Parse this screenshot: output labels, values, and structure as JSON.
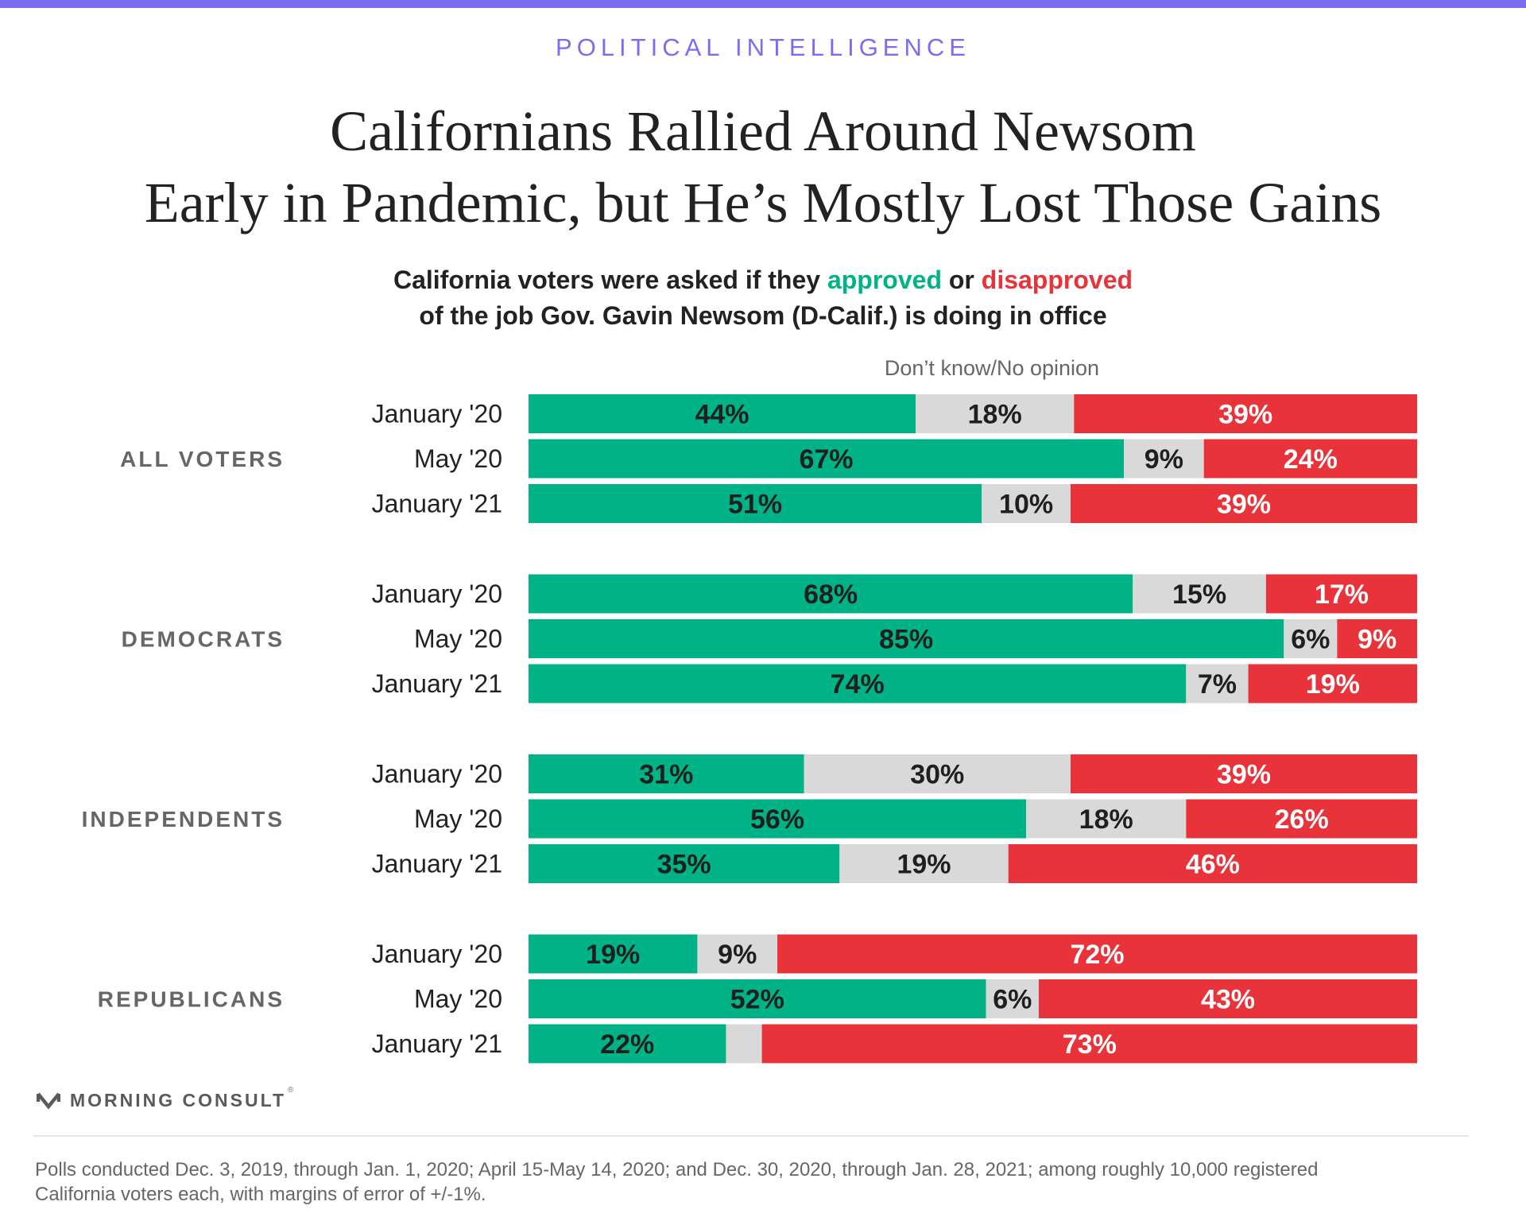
{
  "header": {
    "kicker": "POLITICAL INTELLIGENCE",
    "title_line1": "Californians Rallied Around Newsom",
    "title_line2": "Early in Pandemic, but He’s Mostly Lost Those Gains",
    "subtitle_part1": "California voters were asked if they ",
    "subtitle_approved": "approved",
    "subtitle_or": " or ",
    "subtitle_disapproved": "disapproved",
    "subtitle_line2": "of the job Gov. Gavin Newsom (D-Calif.) is doing in office"
  },
  "colors": {
    "accent": "#7B6CF2",
    "approve": "#00B386",
    "neutral": "#D9D9D9",
    "disapprove": "#E8333A",
    "group_label": "#666666"
  },
  "chart_data": {
    "type": "bar",
    "orientation": "horizontal",
    "stacked": true,
    "category_label": "Don’t know/No opinion",
    "series_order": [
      "approve",
      "no_opinion",
      "disapprove"
    ],
    "groups": [
      {
        "name": "ALL VOTERS",
        "rows": [
          {
            "period": "January '20",
            "approve": 44,
            "no_opinion": 18,
            "disapprove": 39,
            "approve_label": "44%",
            "no_opinion_label": "18%",
            "disapprove_label": "39%"
          },
          {
            "period": "May '20",
            "approve": 67,
            "no_opinion": 9,
            "disapprove": 24,
            "approve_label": "67%",
            "no_opinion_label": "9%",
            "disapprove_label": "24%"
          },
          {
            "period": "January '21",
            "approve": 51,
            "no_opinion": 10,
            "disapprove": 39,
            "approve_label": "51%",
            "no_opinion_label": "10%",
            "disapprove_label": "39%"
          }
        ]
      },
      {
        "name": "DEMOCRATS",
        "rows": [
          {
            "period": "January '20",
            "approve": 68,
            "no_opinion": 15,
            "disapprove": 17,
            "approve_label": "68%",
            "no_opinion_label": "15%",
            "disapprove_label": "17%"
          },
          {
            "period": "May '20",
            "approve": 85,
            "no_opinion": 6,
            "disapprove": 9,
            "approve_label": "85%",
            "no_opinion_label": "6%",
            "disapprove_label": "9%"
          },
          {
            "period": "January '21",
            "approve": 74,
            "no_opinion": 7,
            "disapprove": 19,
            "approve_label": "74%",
            "no_opinion_label": "7%",
            "disapprove_label": "19%"
          }
        ]
      },
      {
        "name": "INDEPENDENTS",
        "rows": [
          {
            "period": "January '20",
            "approve": 31,
            "no_opinion": 30,
            "disapprove": 39,
            "approve_label": "31%",
            "no_opinion_label": "30%",
            "disapprove_label": "39%"
          },
          {
            "period": "May '20",
            "approve": 56,
            "no_opinion": 18,
            "disapprove": 26,
            "approve_label": "56%",
            "no_opinion_label": "18%",
            "disapprove_label": "26%"
          },
          {
            "period": "January '21",
            "approve": 35,
            "no_opinion": 19,
            "disapprove": 46,
            "approve_label": "35%",
            "no_opinion_label": "19%",
            "disapprove_label": "46%"
          }
        ]
      },
      {
        "name": "REPUBLICANS",
        "rows": [
          {
            "period": "January '20",
            "approve": 19,
            "no_opinion": 9,
            "disapprove": 72,
            "approve_label": "19%",
            "no_opinion_label": "9%",
            "disapprove_label": "72%"
          },
          {
            "period": "May '20",
            "approve": 52,
            "no_opinion": 6,
            "disapprove": 43,
            "approve_label": "52%",
            "no_opinion_label": "6%",
            "disapprove_label": "43%"
          },
          {
            "period": "January '21",
            "approve": 22,
            "no_opinion": 4,
            "disapprove": 73,
            "approve_label": "22%",
            "no_opinion_label": "",
            "disapprove_label": "73%"
          }
        ]
      }
    ]
  },
  "footer": {
    "logo_text": "MORNING CONSULT",
    "logo_mark": "®",
    "logo_icon": "morning-consult-m-icon",
    "note_line1": "Polls conducted Dec. 3, 2019, through Jan. 1, 2020; April 15-May 14, 2020; and Dec. 30, 2020, through Jan. 28, 2021; among roughly 10,000 registered",
    "note_line2": "California voters each, with margins of error of +/-1%."
  }
}
